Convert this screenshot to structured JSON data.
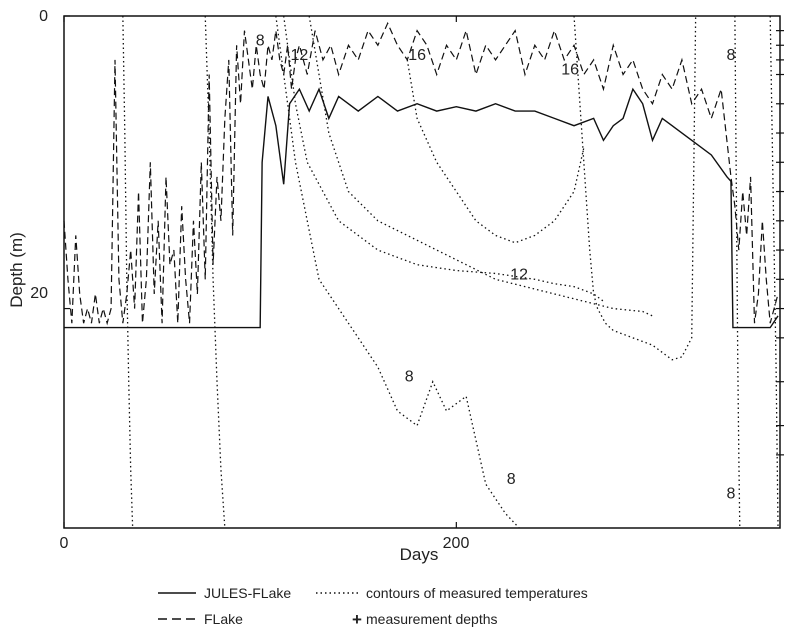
{
  "chart_data": {
    "type": "line",
    "xlabel": "Days",
    "ylabel": "Depth (m)",
    "xlim": [
      0,
      365
    ],
    "ylim": [
      35,
      0
    ],
    "x_ticks": [
      0,
      200
    ],
    "y_ticks": [
      0,
      20
    ],
    "x_tick_labels": [
      "0",
      "200"
    ],
    "y_tick_labels": [
      "0",
      "20"
    ],
    "grid": false,
    "legend_position": "bottom",
    "legend": [
      {
        "label": "JULES-FLake",
        "style": "solid"
      },
      {
        "label": "contours of measured temperatures",
        "style": "dotted"
      },
      {
        "label": "FLake",
        "style": "dashed"
      },
      {
        "label": "measurement depths",
        "style": "plus"
      }
    ],
    "series": [
      {
        "name": "JULES-FLake",
        "style": "solid",
        "x": [
          0,
          10,
          20,
          30,
          40,
          50,
          60,
          70,
          80,
          90,
          100,
          101,
          104,
          108,
          112,
          115,
          120,
          125,
          130,
          135,
          140,
          150,
          160,
          170,
          180,
          190,
          200,
          210,
          220,
          230,
          240,
          250,
          260,
          270,
          275,
          280,
          285,
          290,
          295,
          300,
          305,
          310,
          320,
          330,
          338,
          340,
          341,
          345,
          350,
          355,
          360,
          364
        ],
        "y": [
          21.3,
          21.3,
          21.3,
          21.3,
          21.3,
          21.3,
          21.3,
          21.3,
          21.3,
          21.3,
          21.3,
          10.0,
          5.5,
          7.5,
          11.5,
          6.0,
          5.0,
          6.5,
          5.0,
          7.0,
          5.5,
          6.5,
          5.5,
          6.5,
          6.0,
          6.5,
          6.2,
          6.5,
          6.0,
          6.5,
          6.5,
          7.0,
          7.5,
          7.0,
          8.5,
          7.5,
          7.0,
          5.0,
          6.0,
          8.5,
          7.0,
          7.5,
          8.5,
          9.5,
          11.0,
          11.3,
          21.3,
          21.3,
          21.3,
          21.3,
          21.3,
          20.5
        ]
      },
      {
        "name": "FLake",
        "style": "dashed",
        "x": [
          0,
          2,
          4,
          6,
          8,
          10,
          12,
          14,
          16,
          18,
          20,
          22,
          24,
          26,
          28,
          30,
          32,
          34,
          36,
          38,
          40,
          42,
          44,
          46,
          48,
          50,
          52,
          54,
          56,
          58,
          60,
          62,
          64,
          66,
          68,
          70,
          72,
          74,
          76,
          78,
          80,
          82,
          84,
          86,
          88,
          90,
          92,
          94,
          96,
          98,
          100,
          102,
          104,
          106,
          108,
          110,
          112,
          114,
          116,
          118,
          120,
          124,
          128,
          132,
          136,
          140,
          145,
          150,
          155,
          160,
          165,
          170,
          175,
          180,
          185,
          190,
          195,
          200,
          205,
          210,
          215,
          220,
          225,
          230,
          235,
          240,
          245,
          250,
          255,
          260,
          265,
          270,
          275,
          280,
          285,
          290,
          295,
          300,
          305,
          310,
          315,
          320,
          325,
          330,
          335,
          340,
          342,
          344,
          346,
          348,
          350,
          352,
          354,
          356,
          358,
          360,
          362,
          364
        ],
        "y": [
          14,
          18,
          21,
          15,
          19,
          21,
          20,
          21,
          19,
          21,
          20,
          21,
          20,
          3,
          18,
          21,
          19,
          16,
          20,
          12,
          21,
          18,
          10,
          19,
          14,
          21,
          11,
          17,
          16,
          21,
          13,
          18,
          21,
          14,
          19,
          10,
          18,
          4,
          17,
          11,
          14,
          7,
          3,
          15,
          2,
          6,
          1,
          3,
          5,
          2,
          4,
          5,
          2,
          3,
          1,
          3,
          4,
          2,
          5,
          3,
          2,
          4,
          1,
          3,
          2,
          4,
          2,
          3,
          1,
          2,
          0.5,
          2,
          3,
          1,
          2,
          4,
          2,
          3,
          1,
          4,
          2,
          3,
          2,
          1,
          4,
          2,
          3,
          1,
          3,
          2,
          4,
          3,
          5,
          2,
          4,
          3,
          5,
          6,
          4,
          5,
          3,
          6,
          5,
          7,
          5,
          11,
          13,
          16,
          12,
          15,
          11,
          21,
          19,
          14,
          18,
          21,
          20,
          19
        ]
      }
    ],
    "contours": [
      {
        "label": "8",
        "x": [
          30,
          31,
          32,
          33,
          34,
          35
        ],
        "y": [
          0,
          8,
          18,
          25,
          31,
          35
        ]
      },
      {
        "label": "8",
        "x": [
          72,
          74,
          76,
          78,
          80,
          82
        ],
        "y": [
          0,
          8,
          18,
          25,
          31,
          35
        ]
      },
      {
        "label": "8",
        "x": [
          108,
          112,
          118,
          124,
          130,
          140,
          150,
          160,
          170,
          180,
          188,
          195,
          205,
          210,
          215,
          220,
          225,
          232
        ],
        "y": [
          0,
          4,
          10,
          14,
          18,
          20,
          22,
          24,
          27,
          28,
          25,
          27,
          26,
          29,
          32,
          33,
          34,
          35
        ]
      },
      {
        "label": "12",
        "x": [
          112,
          118,
          124,
          132,
          140,
          150,
          160,
          170,
          180,
          190,
          200,
          210,
          220,
          230,
          240,
          250,
          260,
          270,
          275
        ],
        "y": [
          0,
          6,
          10,
          12,
          14,
          15,
          16,
          16.5,
          17,
          17.2,
          17.4,
          17.5,
          17.6,
          17.8,
          18,
          18.3,
          18.5,
          19,
          19.5
        ]
      },
      {
        "label": "12",
        "x": [
          125,
          135,
          145,
          160,
          175,
          190,
          205,
          220,
          235,
          250,
          265,
          280,
          295,
          300
        ],
        "y": [
          0,
          8,
          12,
          14,
          15,
          16,
          17,
          18,
          18.5,
          19,
          19.5,
          20,
          20.2,
          20.5
        ]
      },
      {
        "label": "16",
        "x": [
          175,
          180,
          190,
          200,
          210,
          220,
          230,
          240,
          250,
          260,
          265
        ],
        "y": [
          3,
          7,
          10,
          12,
          14,
          15,
          15.5,
          15,
          14,
          12,
          9
        ]
      },
      {
        "label": "16",
        "x": [
          260,
          262,
          264,
          266,
          268,
          270,
          272,
          276,
          280,
          290,
          300,
          305,
          310,
          315,
          320,
          322
        ],
        "y": [
          0,
          4,
          8,
          12,
          16,
          19,
          20,
          21,
          21.5,
          22,
          22.5,
          23,
          23.5,
          23.3,
          22,
          0
        ]
      },
      {
        "label": "8",
        "x": [
          342,
          342.5,
          343,
          343.5,
          344,
          344.5
        ],
        "y": [
          0,
          8,
          16,
          24,
          30,
          35
        ]
      },
      {
        "label": "8",
        "x": [
          360,
          361,
          362,
          363,
          364
        ],
        "y": [
          0,
          8,
          16,
          24,
          35
        ]
      }
    ],
    "contour_labels": [
      {
        "text": "8",
        "x": 100,
        "y": 2
      },
      {
        "text": "12",
        "x": 120,
        "y": 3
      },
      {
        "text": "16",
        "x": 180,
        "y": 3
      },
      {
        "text": "16",
        "x": 258,
        "y": 4
      },
      {
        "text": "12",
        "x": 232,
        "y": 18
      },
      {
        "text": "8",
        "x": 176,
        "y": 25
      },
      {
        "text": "8",
        "x": 228,
        "y": 32
      },
      {
        "text": "8",
        "x": 340,
        "y": 3
      },
      {
        "text": "8",
        "x": 340,
        "y": 33
      }
    ],
    "measurement_depths": [
      1,
      2,
      3,
      4,
      6,
      8,
      10,
      12,
      14,
      16,
      18,
      20,
      22,
      25,
      28,
      30
    ]
  }
}
